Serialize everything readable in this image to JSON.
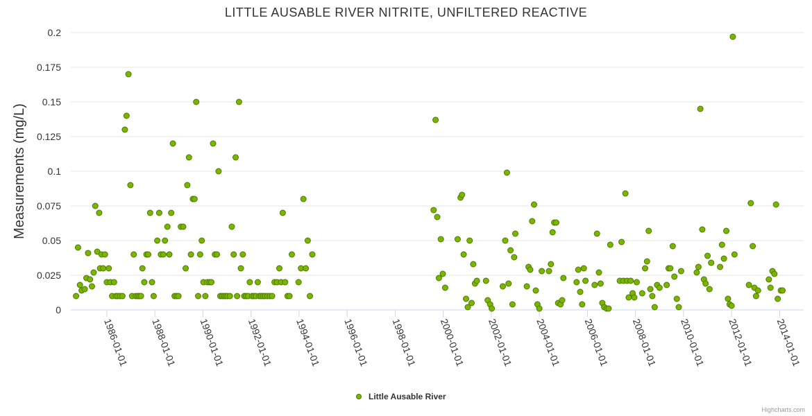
{
  "chart_data": {
    "type": "scatter",
    "title": "LITTLE AUSABLE RIVER NITRITE, UNFILTERED REACTIVE",
    "xlabel": "",
    "ylabel": "Measurements (mg/L)",
    "xlim": [
      1984.5,
      2015.0
    ],
    "ylim": [
      0,
      0.2
    ],
    "y_ticks": [
      0,
      0.025,
      0.05,
      0.075,
      0.1,
      0.125,
      0.15,
      0.175,
      0.2
    ],
    "y_tick_labels": [
      "0",
      "0.025",
      "0.05",
      "0.075",
      "0.1",
      "0.125",
      "0.15",
      "0.175",
      "0.2"
    ],
    "x_ticks": [
      1986,
      1988,
      1990,
      1992,
      1994,
      1996,
      1998,
      2000,
      2002,
      2004,
      2006,
      2008,
      2010,
      2012,
      2014
    ],
    "x_tick_labels": [
      "1986-01-01",
      "1988-01-01",
      "1990-01-01",
      "1992-01-01",
      "1994-01-01",
      "1996-01-01",
      "1998-01-01",
      "2000-01-01",
      "2002-01-01",
      "2004-01-01",
      "2006-01-01",
      "2008-01-01",
      "2010-01-01",
      "2012-01-01",
      "2014-01-01"
    ],
    "grid": true,
    "legend_position": "bottom-center",
    "credits": "Highcharts.com",
    "series": [
      {
        "name": "Little Ausable River",
        "color": "#7cb500",
        "border_color": "#4a7a00",
        "points": [
          [
            1984.72,
            0.01
          ],
          [
            1984.8,
            0.045
          ],
          [
            1984.88,
            0.018
          ],
          [
            1984.95,
            0.014
          ],
          [
            1985.08,
            0.015
          ],
          [
            1985.15,
            0.023
          ],
          [
            1985.22,
            0.041
          ],
          [
            1985.3,
            0.022
          ],
          [
            1985.38,
            0.017
          ],
          [
            1985.45,
            0.027
          ],
          [
            1985.52,
            0.075
          ],
          [
            1985.6,
            0.042
          ],
          [
            1985.68,
            0.07
          ],
          [
            1985.72,
            0.03
          ],
          [
            1985.78,
            0.04
          ],
          [
            1985.85,
            0.03
          ],
          [
            1985.92,
            0.04
          ],
          [
            1986.0,
            0.02
          ],
          [
            1986.08,
            0.03
          ],
          [
            1986.15,
            0.02
          ],
          [
            1986.22,
            0.01
          ],
          [
            1986.3,
            0.02
          ],
          [
            1986.38,
            0.01
          ],
          [
            1986.45,
            0.01
          ],
          [
            1986.55,
            0.01
          ],
          [
            1986.65,
            0.01
          ],
          [
            1986.75,
            0.13
          ],
          [
            1986.82,
            0.14
          ],
          [
            1986.9,
            0.17
          ],
          [
            1986.98,
            0.09
          ],
          [
            1987.05,
            0.01
          ],
          [
            1987.12,
            0.04
          ],
          [
            1987.2,
            0.01
          ],
          [
            1987.28,
            0.01
          ],
          [
            1987.35,
            0.01
          ],
          [
            1987.42,
            0.01
          ],
          [
            1987.48,
            0.03
          ],
          [
            1987.56,
            0.02
          ],
          [
            1987.65,
            0.04
          ],
          [
            1987.72,
            0.04
          ],
          [
            1987.8,
            0.07
          ],
          [
            1987.88,
            0.02
          ],
          [
            1987.95,
            0.01
          ],
          [
            1988.1,
            0.05
          ],
          [
            1988.18,
            0.07
          ],
          [
            1988.25,
            0.04
          ],
          [
            1988.35,
            0.04
          ],
          [
            1988.42,
            0.05
          ],
          [
            1988.52,
            0.06
          ],
          [
            1988.6,
            0.04
          ],
          [
            1988.68,
            0.07
          ],
          [
            1988.75,
            0.12
          ],
          [
            1988.82,
            0.01
          ],
          [
            1988.9,
            0.01
          ],
          [
            1988.98,
            0.01
          ],
          [
            1989.08,
            0.06
          ],
          [
            1989.18,
            0.06
          ],
          [
            1989.28,
            0.03
          ],
          [
            1989.35,
            0.09
          ],
          [
            1989.42,
            0.11
          ],
          [
            1989.5,
            0.04
          ],
          [
            1989.58,
            0.08
          ],
          [
            1989.65,
            0.08
          ],
          [
            1989.72,
            0.15
          ],
          [
            1989.8,
            0.01
          ],
          [
            1989.88,
            0.04
          ],
          [
            1989.95,
            0.05
          ],
          [
            1990.02,
            0.02
          ],
          [
            1990.1,
            0.01
          ],
          [
            1990.18,
            0.02
          ],
          [
            1990.28,
            0.02
          ],
          [
            1990.35,
            0.02
          ],
          [
            1990.42,
            0.12
          ],
          [
            1990.5,
            0.04
          ],
          [
            1990.58,
            0.04
          ],
          [
            1990.65,
            0.1
          ],
          [
            1990.72,
            0.01
          ],
          [
            1990.8,
            0.01
          ],
          [
            1990.88,
            0.01
          ],
          [
            1990.95,
            0.01
          ],
          [
            1991.02,
            0.01
          ],
          [
            1991.12,
            0.01
          ],
          [
            1991.2,
            0.06
          ],
          [
            1991.28,
            0.04
          ],
          [
            1991.36,
            0.11
          ],
          [
            1991.42,
            0.01
          ],
          [
            1991.5,
            0.15
          ],
          [
            1991.58,
            0.03
          ],
          [
            1991.66,
            0.04
          ],
          [
            1991.72,
            0.01
          ],
          [
            1991.8,
            0.01
          ],
          [
            1991.88,
            0.01
          ],
          [
            1991.95,
            0.02
          ],
          [
            1992.05,
            0.01
          ],
          [
            1992.12,
            0.01
          ],
          [
            1992.2,
            0.01
          ],
          [
            1992.28,
            0.02
          ],
          [
            1992.35,
            0.01
          ],
          [
            1992.42,
            0.01
          ],
          [
            1992.5,
            0.01
          ],
          [
            1992.58,
            0.01
          ],
          [
            1992.68,
            0.01
          ],
          [
            1992.78,
            0.01
          ],
          [
            1992.88,
            0.01
          ],
          [
            1992.98,
            0.02
          ],
          [
            1993.08,
            0.02
          ],
          [
            1993.18,
            0.03
          ],
          [
            1993.25,
            0.02
          ],
          [
            1993.32,
            0.07
          ],
          [
            1993.42,
            0.02
          ],
          [
            1993.52,
            0.01
          ],
          [
            1993.6,
            0.01
          ],
          [
            1993.7,
            0.04
          ],
          [
            1993.98,
            0.02
          ],
          [
            1994.08,
            0.03
          ],
          [
            1994.18,
            0.08
          ],
          [
            1994.28,
            0.03
          ],
          [
            1994.36,
            0.05
          ],
          [
            1994.45,
            0.01
          ],
          [
            1994.55,
            0.04
          ],
          [
            1999.6,
            0.072
          ],
          [
            1999.68,
            0.137
          ],
          [
            1999.75,
            0.067
          ],
          [
            1999.82,
            0.023
          ],
          [
            1999.9,
            0.051
          ],
          [
            1999.98,
            0.026
          ],
          [
            2000.08,
            0.016
          ],
          [
            2000.6,
            0.051
          ],
          [
            2000.72,
            0.081
          ],
          [
            2000.78,
            0.083
          ],
          [
            2000.85,
            0.04
          ],
          [
            2000.95,
            0.008
          ],
          [
            2001.02,
            0.002
          ],
          [
            2001.1,
            0.05
          ],
          [
            2001.18,
            0.005
          ],
          [
            2001.25,
            0.033
          ],
          [
            2001.32,
            0.019
          ],
          [
            2001.4,
            0.021
          ],
          [
            2001.78,
            0.021
          ],
          [
            2001.85,
            0.007
          ],
          [
            2001.95,
            0.004
          ],
          [
            2002.02,
            0.001
          ],
          [
            2002.48,
            0.017
          ],
          [
            2002.58,
            0.05
          ],
          [
            2002.65,
            0.099
          ],
          [
            2002.72,
            0.019
          ],
          [
            2002.8,
            0.043
          ],
          [
            2002.88,
            0.004
          ],
          [
            2002.95,
            0.038
          ],
          [
            2003.0,
            0.055
          ],
          [
            2003.48,
            0.017
          ],
          [
            2003.55,
            0.031
          ],
          [
            2003.62,
            0.029
          ],
          [
            2003.7,
            0.064
          ],
          [
            2003.78,
            0.076
          ],
          [
            2003.85,
            0.014
          ],
          [
            2003.92,
            0.004
          ],
          [
            2004.0,
            0.001
          ],
          [
            2004.1,
            0.028
          ],
          [
            2004.4,
            0.028
          ],
          [
            2004.48,
            0.033
          ],
          [
            2004.55,
            0.056
          ],
          [
            2004.62,
            0.063
          ],
          [
            2004.7,
            0.063
          ],
          [
            2004.78,
            0.005
          ],
          [
            2004.88,
            0.004
          ],
          [
            2004.95,
            0.007
          ],
          [
            2005.0,
            0.023
          ],
          [
            2005.55,
            0.02
          ],
          [
            2005.62,
            0.029
          ],
          [
            2005.7,
            0.013
          ],
          [
            2005.78,
            0.004
          ],
          [
            2005.85,
            0.03
          ],
          [
            2005.92,
            0.021
          ],
          [
            2006.3,
            0.018
          ],
          [
            2006.4,
            0.055
          ],
          [
            2006.48,
            0.027
          ],
          [
            2006.55,
            0.019
          ],
          [
            2006.62,
            0.005
          ],
          [
            2006.7,
            0.002
          ],
          [
            2006.8,
            0.001
          ],
          [
            2006.88,
            0.001
          ],
          [
            2006.95,
            0.047
          ],
          [
            2007.35,
            0.021
          ],
          [
            2007.42,
            0.049
          ],
          [
            2007.5,
            0.021
          ],
          [
            2007.58,
            0.084
          ],
          [
            2007.65,
            0.021
          ],
          [
            2007.72,
            0.009
          ],
          [
            2007.8,
            0.021
          ],
          [
            2007.88,
            0.012
          ],
          [
            2007.95,
            0.009
          ],
          [
            2008.05,
            0.02
          ],
          [
            2008.28,
            0.012
          ],
          [
            2008.4,
            0.03
          ],
          [
            2008.48,
            0.035
          ],
          [
            2008.55,
            0.057
          ],
          [
            2008.62,
            0.015
          ],
          [
            2008.7,
            0.01
          ],
          [
            2008.8,
            0.002
          ],
          [
            2008.9,
            0.018
          ],
          [
            2009.0,
            0.016
          ],
          [
            2009.3,
            0.018
          ],
          [
            2009.38,
            0.03
          ],
          [
            2009.45,
            0.03
          ],
          [
            2009.55,
            0.046
          ],
          [
            2009.62,
            0.024
          ],
          [
            2009.72,
            0.008
          ],
          [
            2009.8,
            0.002
          ],
          [
            2009.9,
            0.028
          ],
          [
            2010.55,
            0.027
          ],
          [
            2010.62,
            0.031
          ],
          [
            2010.7,
            0.145
          ],
          [
            2010.78,
            0.058
          ],
          [
            2010.85,
            0.022
          ],
          [
            2010.92,
            0.019
          ],
          [
            2011.0,
            0.039
          ],
          [
            2011.08,
            0.015
          ],
          [
            2011.15,
            0.034
          ],
          [
            2011.52,
            0.031
          ],
          [
            2011.6,
            0.047
          ],
          [
            2011.68,
            0.037
          ],
          [
            2011.78,
            0.057
          ],
          [
            2011.85,
            0.008
          ],
          [
            2011.92,
            0.004
          ],
          [
            2012.0,
            0.003
          ],
          [
            2012.05,
            0.197
          ],
          [
            2012.12,
            0.04
          ],
          [
            2012.72,
            0.018
          ],
          [
            2012.8,
            0.077
          ],
          [
            2012.88,
            0.046
          ],
          [
            2012.95,
            0.016
          ],
          [
            2013.02,
            0.01
          ],
          [
            2013.1,
            0.014
          ],
          [
            2013.55,
            0.022
          ],
          [
            2013.62,
            0.016
          ],
          [
            2013.7,
            0.028
          ],
          [
            2013.78,
            0.026
          ],
          [
            2013.85,
            0.076
          ],
          [
            2013.92,
            0.008
          ],
          [
            2014.05,
            0.014
          ],
          [
            2014.12,
            0.014
          ]
        ]
      }
    ]
  }
}
